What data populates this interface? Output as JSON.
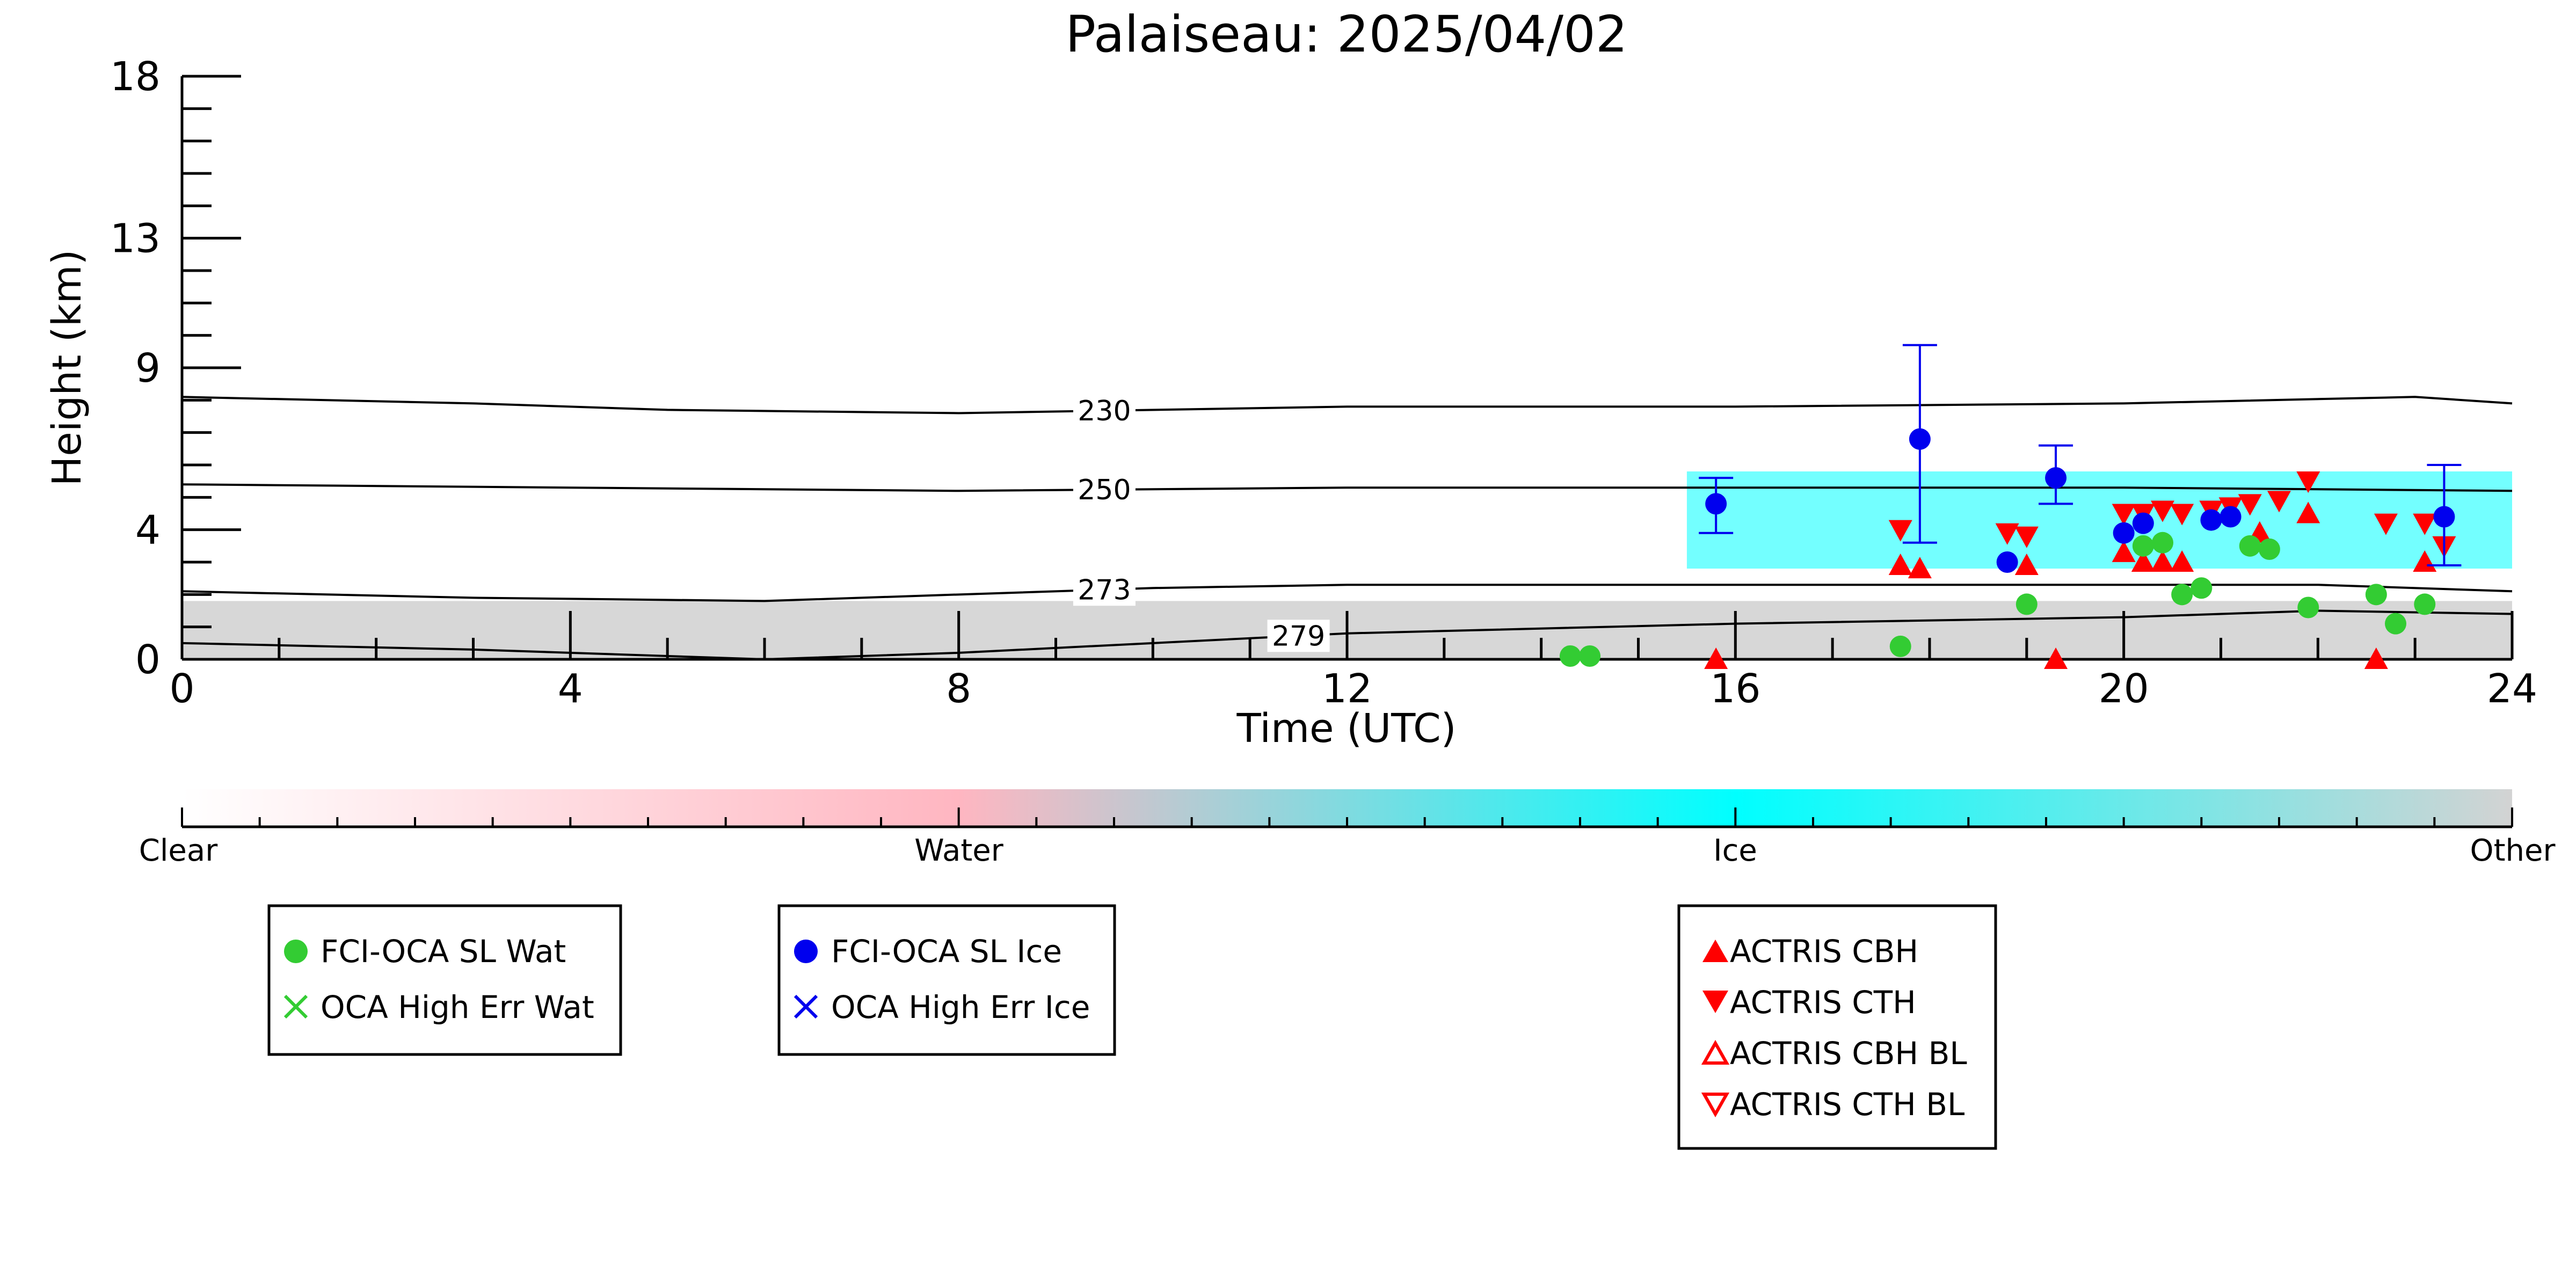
{
  "chart_data": {
    "type": "scatter",
    "title": "Palaiseau: 2025/04/02",
    "xlabel": "Time (UTC)",
    "ylabel": "Height (km)",
    "xlim": [
      0,
      24
    ],
    "ylim": [
      0,
      18
    ],
    "x_ticks": [
      "0",
      "4",
      "8",
      "12",
      "16",
      "20",
      "24"
    ],
    "y_ticks": [
      "0",
      "4",
      "9",
      "13",
      "18"
    ],
    "grid": false,
    "temperature_contours": [
      {
        "label": "230",
        "x": [
          0,
          3,
          5,
          8,
          12,
          16,
          20,
          23,
          24
        ],
        "y": [
          8.1,
          7.9,
          7.7,
          7.6,
          7.8,
          7.8,
          7.9,
          8.1,
          7.9
        ]
      },
      {
        "label": "250",
        "x": [
          0,
          4,
          8,
          12,
          16,
          20,
          24
        ],
        "y": [
          5.4,
          5.3,
          5.2,
          5.3,
          5.3,
          5.3,
          5.2
        ]
      },
      {
        "label": "273",
        "x": [
          0,
          3,
          6,
          8,
          10,
          12,
          16,
          20,
          22,
          24
        ],
        "y": [
          2.1,
          1.9,
          1.8,
          2.0,
          2.2,
          2.3,
          2.3,
          2.3,
          2.3,
          2.1
        ]
      },
      {
        "label": "279",
        "x": [
          0,
          3,
          6,
          8,
          10,
          12,
          16,
          20,
          22,
          24
        ],
        "y": [
          0.5,
          0.3,
          0.0,
          0.2,
          0.5,
          0.8,
          1.1,
          1.3,
          1.5,
          1.4
        ]
      }
    ],
    "classification_regions": [
      {
        "class": "Other",
        "x_start": 0,
        "x_end": 24,
        "y_top": 1.8
      },
      {
        "class": "Ice",
        "x_start": 15.5,
        "x_end": 24,
        "y_bottom": 2.8,
        "y_top": 5.8
      }
    ],
    "colorbar": {
      "labels": [
        "Clear",
        "Water",
        "Ice",
        "Other"
      ],
      "colors": [
        "#ffffff",
        "#ffb6c1",
        "#00ffff",
        "#d3d3d3"
      ]
    },
    "series": [
      {
        "name": "FCI-OCA SL Wat",
        "marker": "circle",
        "color": "#33cc33",
        "points": [
          {
            "x": 14.3,
            "y": 0.1
          },
          {
            "x": 14.5,
            "y": 0.1
          },
          {
            "x": 17.7,
            "y": 0.4
          },
          {
            "x": 19.0,
            "y": 1.7
          },
          {
            "x": 20.2,
            "y": 3.5
          },
          {
            "x": 20.4,
            "y": 3.6
          },
          {
            "x": 20.6,
            "y": 2.0
          },
          {
            "x": 20.8,
            "y": 2.2
          },
          {
            "x": 21.3,
            "y": 3.5
          },
          {
            "x": 21.5,
            "y": 3.4
          },
          {
            "x": 21.9,
            "y": 1.6
          },
          {
            "x": 22.6,
            "y": 2.0
          },
          {
            "x": 22.8,
            "y": 1.1
          },
          {
            "x": 23.1,
            "y": 1.7
          }
        ]
      },
      {
        "name": "OCA High Err Wat",
        "marker": "x",
        "color": "#33cc33",
        "points": []
      },
      {
        "name": "FCI-OCA SL Ice",
        "marker": "circle",
        "color": "#0000ee",
        "points": [
          {
            "x": 15.8,
            "y": 4.8,
            "err_low": 3.9,
            "err_high": 5.6
          },
          {
            "x": 17.9,
            "y": 6.8,
            "err_low": 3.6,
            "err_high": 9.7
          },
          {
            "x": 18.8,
            "y": 3.0
          },
          {
            "x": 19.3,
            "y": 5.6,
            "err_low": 4.8,
            "err_high": 6.6
          },
          {
            "x": 20.0,
            "y": 3.9
          },
          {
            "x": 20.2,
            "y": 4.2
          },
          {
            "x": 20.9,
            "y": 4.3
          },
          {
            "x": 21.1,
            "y": 4.4
          },
          {
            "x": 23.3,
            "y": 4.4,
            "err_low": 2.9,
            "err_high": 6.0
          }
        ]
      },
      {
        "name": "OCA High Err Ice",
        "marker": "x",
        "color": "#0000ee",
        "points": []
      },
      {
        "name": "ACTRIS CBH",
        "marker": "triangle-up",
        "color": "#ff0000",
        "points": [
          {
            "x": 15.8,
            "y": 0.0
          },
          {
            "x": 17.7,
            "y": 2.9
          },
          {
            "x": 17.9,
            "y": 2.8
          },
          {
            "x": 19.0,
            "y": 2.9
          },
          {
            "x": 19.3,
            "y": 0.0
          },
          {
            "x": 20.0,
            "y": 3.3
          },
          {
            "x": 20.2,
            "y": 3.0
          },
          {
            "x": 20.4,
            "y": 3.0
          },
          {
            "x": 20.6,
            "y": 3.0
          },
          {
            "x": 21.4,
            "y": 3.9
          },
          {
            "x": 21.9,
            "y": 4.5
          },
          {
            "x": 22.6,
            "y": 0.0
          },
          {
            "x": 23.1,
            "y": 3.0
          }
        ]
      },
      {
        "name": "ACTRIS CTH",
        "marker": "triangle-down",
        "color": "#ff0000",
        "points": [
          {
            "x": 17.7,
            "y": 4.0
          },
          {
            "x": 18.8,
            "y": 3.9
          },
          {
            "x": 19.0,
            "y": 3.8
          },
          {
            "x": 20.0,
            "y": 4.5
          },
          {
            "x": 20.2,
            "y": 4.5
          },
          {
            "x": 20.4,
            "y": 4.6
          },
          {
            "x": 20.6,
            "y": 4.5
          },
          {
            "x": 20.9,
            "y": 4.6
          },
          {
            "x": 21.1,
            "y": 4.7
          },
          {
            "x": 21.3,
            "y": 4.8
          },
          {
            "x": 21.6,
            "y": 4.9
          },
          {
            "x": 21.9,
            "y": 5.5
          },
          {
            "x": 22.7,
            "y": 4.2
          },
          {
            "x": 23.1,
            "y": 4.2
          },
          {
            "x": 23.3,
            "y": 3.5
          }
        ]
      },
      {
        "name": "ACTRIS CBH BL",
        "marker": "triangle-up-open",
        "color": "#ff0000",
        "points": []
      },
      {
        "name": "ACTRIS CTH BL",
        "marker": "triangle-down-open",
        "color": "#ff0000",
        "points": []
      }
    ]
  }
}
